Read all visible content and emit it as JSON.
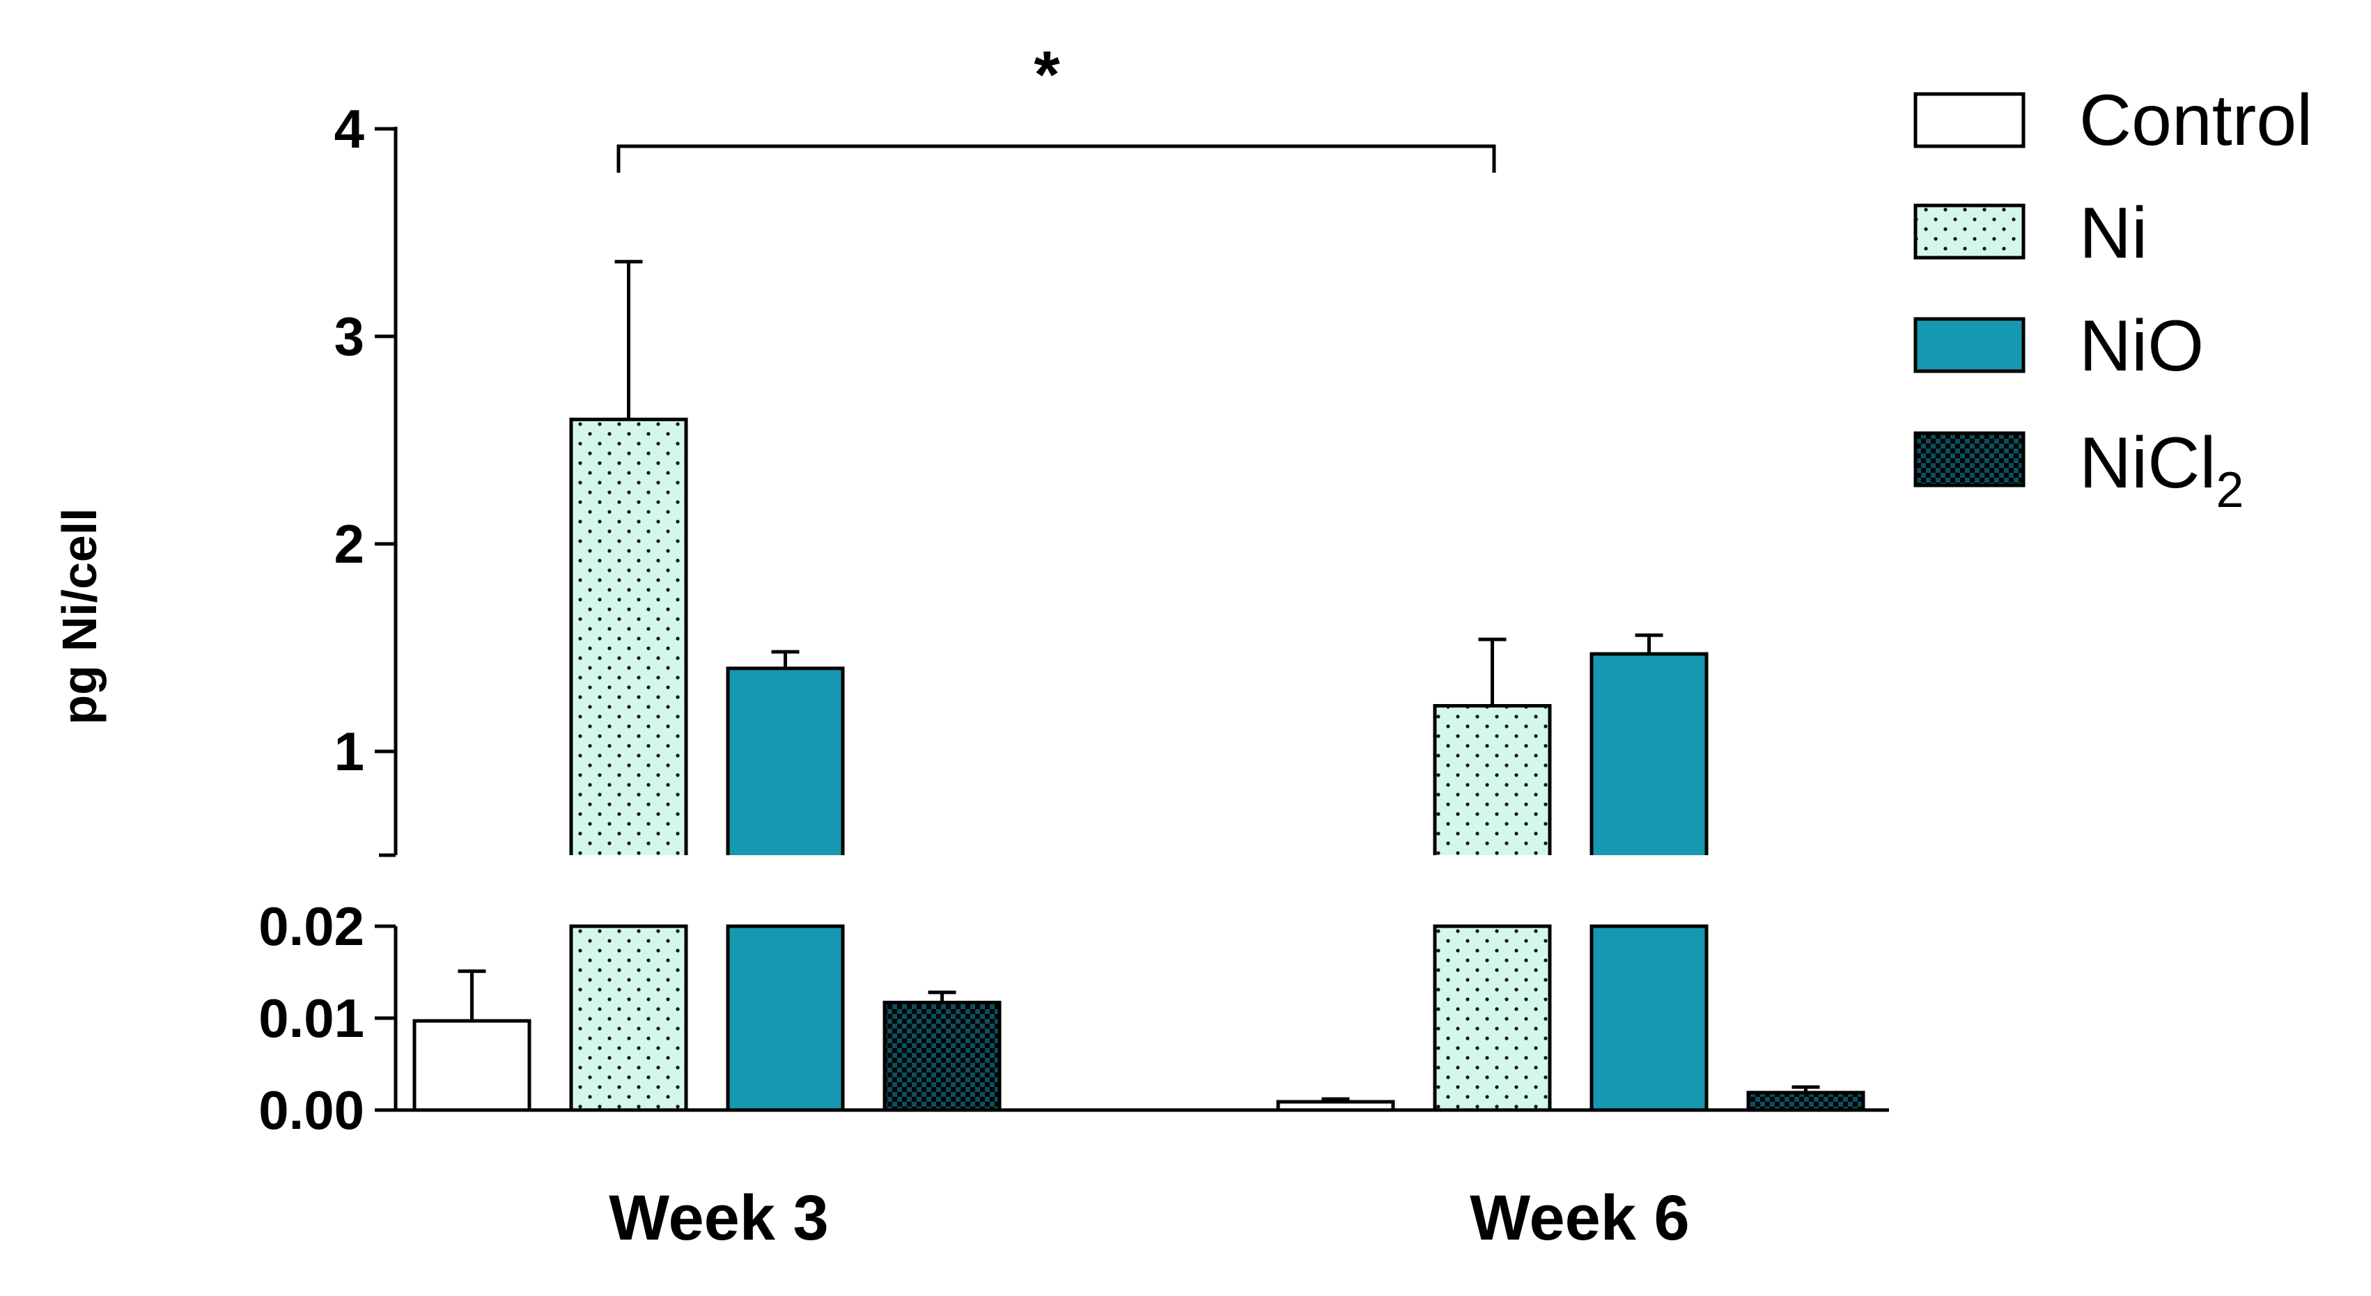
{
  "chart_data": {
    "type": "bar",
    "ylabel": "pg Ni/cell",
    "categories": [
      "Week 3",
      "Week 6"
    ],
    "y_axis_break": true,
    "upper_segment": {
      "ylim": [
        0.5,
        4
      ],
      "ticks": [
        "1",
        "2",
        "3",
        "4"
      ]
    },
    "lower_segment": {
      "ylim": [
        0,
        0.02
      ],
      "ticks": [
        "0.00",
        "0.01",
        "0.02"
      ]
    },
    "series": [
      {
        "name": "Control",
        "sub": "",
        "pattern": "plain",
        "color": "#ffffff",
        "values": [
          0.0097,
          0.0009
        ],
        "errors": [
          0.0054,
          0.0003
        ]
      },
      {
        "name": "Ni",
        "sub": "",
        "pattern": "dots",
        "color": "#d4f7ec",
        "values": [
          2.6,
          1.22
        ],
        "errors": [
          0.76,
          0.32
        ]
      },
      {
        "name": "NiO",
        "sub": "",
        "pattern": "solid",
        "color": "#1599b1",
        "values": [
          1.4,
          1.47
        ],
        "errors": [
          0.08,
          0.09
        ]
      },
      {
        "name": "NiCl",
        "sub": "2",
        "pattern": "checker",
        "color": "#0b4f5f",
        "values": [
          0.0117,
          0.0019
        ],
        "errors": [
          0.0011,
          0.0006
        ]
      }
    ],
    "annotations": [
      {
        "text": "*",
        "between": [
          "Week 3",
          "Week 6"
        ]
      }
    ]
  }
}
